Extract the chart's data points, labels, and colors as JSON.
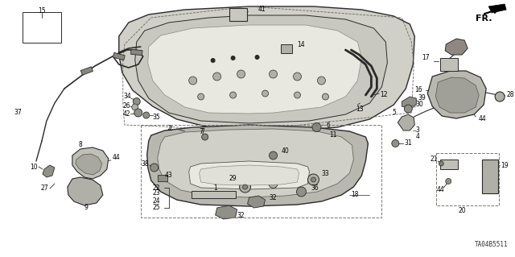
{
  "bg_color": "#ffffff",
  "diagram_code": "TA04B5511",
  "fr_label": "FR.",
  "line_color": "#2a2a2a",
  "fill_color": "#d0d0c8",
  "fill_dark": "#a8a8a0",
  "fill_light": "#e8e8e0"
}
